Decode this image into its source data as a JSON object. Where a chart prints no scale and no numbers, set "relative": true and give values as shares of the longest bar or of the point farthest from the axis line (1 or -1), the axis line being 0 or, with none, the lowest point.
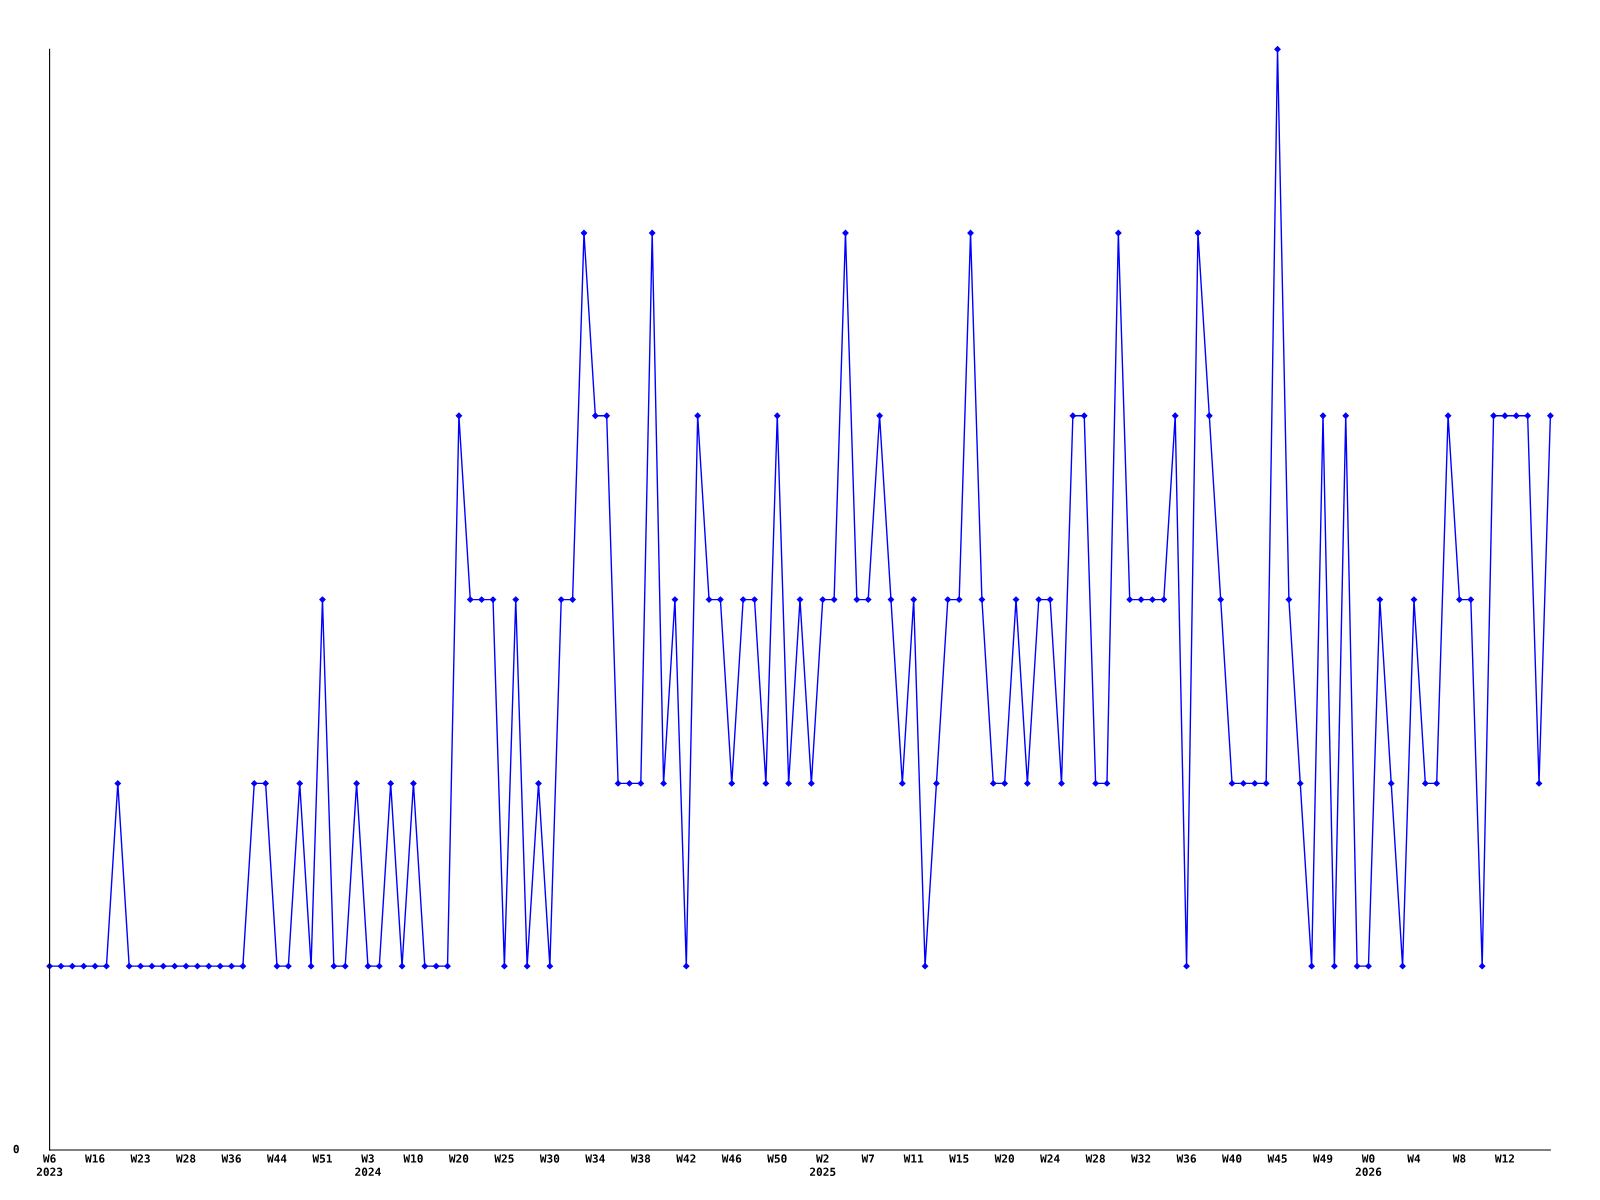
{
  "chart_data": {
    "type": "line",
    "relative": true,
    "marker": "diamond",
    "line_style": "solid",
    "grid": false,
    "annotations": [
      "0"
    ],
    "categories": [
      "W6\n2023",
      null,
      null,
      null,
      "W16",
      null,
      null,
      null,
      "W23",
      null,
      null,
      null,
      "W28",
      null,
      null,
      null,
      "W36",
      null,
      null,
      null,
      "W44",
      null,
      null,
      null,
      "W51",
      null,
      null,
      null,
      "W3\n2024",
      null,
      null,
      null,
      "W10",
      null,
      null,
      null,
      "W20",
      null,
      null,
      null,
      "W25",
      null,
      null,
      null,
      "W30",
      null,
      null,
      null,
      "W34",
      null,
      null,
      null,
      "W38",
      null,
      null,
      null,
      "W42",
      null,
      null,
      null,
      "W46",
      null,
      null,
      null,
      "W50",
      null,
      null,
      null,
      "W2\n2025",
      null,
      null,
      null,
      "W7",
      null,
      null,
      null,
      "W11",
      null,
      null,
      null,
      "W15",
      null,
      null,
      null,
      "W20",
      null,
      null,
      null,
      "W24",
      null,
      null,
      null,
      "W28",
      null,
      null,
      null,
      "W32",
      null,
      null,
      null,
      "W36",
      null,
      null,
      null,
      "W40",
      null,
      null,
      null,
      "W45",
      null,
      null,
      null,
      "W49",
      null,
      null,
      null,
      "W0\n2026",
      null,
      null,
      null,
      "W4",
      null,
      null,
      null,
      "W8",
      null,
      null,
      null,
      "W12",
      null,
      null,
      null,
      null
    ],
    "series": [
      {
        "color": "#0000ff",
        "values": [
          0.167,
          0.167,
          0.167,
          0.167,
          0.167,
          0.167,
          0.333,
          0.167,
          0.167,
          0.167,
          0.167,
          0.167,
          0.167,
          0.167,
          0.167,
          0.167,
          0.167,
          0.167,
          0.333,
          0.333,
          0.167,
          0.167,
          0.333,
          0.167,
          0.5,
          0.167,
          0.167,
          0.333,
          0.167,
          0.167,
          0.333,
          0.167,
          0.333,
          0.167,
          0.167,
          0.167,
          0.667,
          0.5,
          0.5,
          0.5,
          0.167,
          0.5,
          0.167,
          0.333,
          0.167,
          0.5,
          0.5,
          0.833,
          0.667,
          0.667,
          0.333,
          0.333,
          0.333,
          0.833,
          0.333,
          0.5,
          0.167,
          0.667,
          0.5,
          0.5,
          0.333,
          0.5,
          0.5,
          0.333,
          0.667,
          0.333,
          0.5,
          0.333,
          0.5,
          0.5,
          0.833,
          0.5,
          0.5,
          0.667,
          0.5,
          0.333,
          0.5,
          0.167,
          0.333,
          0.5,
          0.5,
          0.833,
          0.5,
          0.333,
          0.333,
          0.5,
          0.333,
          0.5,
          0.5,
          0.333,
          0.667,
          0.667,
          0.333,
          0.333,
          0.833,
          0.5,
          0.5,
          0.5,
          0.5,
          0.667,
          0.167,
          0.833,
          0.667,
          0.5,
          0.333,
          0.333,
          0.333,
          0.333,
          1,
          0.5,
          0.333,
          0.167,
          0.667,
          0.167,
          0.667,
          0.167,
          0.167,
          0.5,
          0.333,
          0.167,
          0.5,
          0.333,
          0.333,
          0.667,
          0.5,
          0.5,
          0.167,
          0.667,
          0.667,
          0.667,
          0.667,
          0.333,
          0.667
        ]
      }
    ]
  }
}
